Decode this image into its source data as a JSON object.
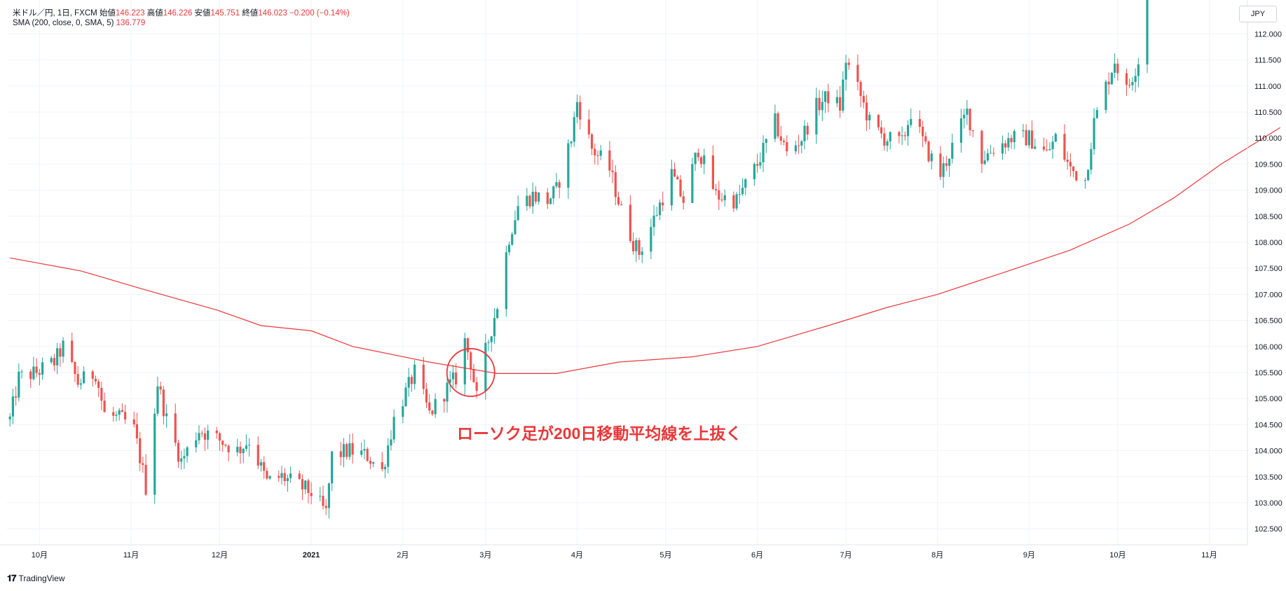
{
  "header": {
    "symbol_line": "米ドル／円, 1日, FXCM",
    "open_label": "始値",
    "open_value": "146.223",
    "high_label": "高値",
    "high_value": "146.226",
    "low_label": "安値",
    "low_value": "145.751",
    "close_label": "終値",
    "close_value": "146.023",
    "change_value": "−0.200 (−0.14%)",
    "indicator_label": "SMA (200, close, 0, SMA, 5)",
    "indicator_value": "136.779"
  },
  "currency_badge": "JPY",
  "annotation_text": "ローソク足が200日移動平均線を上抜く",
  "brand": "TradingView",
  "colors": {
    "up": "#26a69a",
    "down": "#ef5350",
    "sma": "#e8383a",
    "grid": "#f0f3fa"
  },
  "chart_data": {
    "type": "candlestick",
    "y_axis_ticks": [
      "102.500",
      "103.000",
      "103.500",
      "104.000",
      "104.500",
      "105.000",
      "105.500",
      "106.000",
      "106.500",
      "107.000",
      "107.500",
      "108.000",
      "108.500",
      "109.000",
      "109.500",
      "110.000",
      "110.500",
      "111.000",
      "111.500",
      "112.000"
    ],
    "ylim": [
      102.35,
      112.65
    ],
    "x_axis_labels": [
      "10月",
      "11月",
      "12月",
      "2021",
      "2月",
      "3月",
      "4月",
      "5月",
      "6月",
      "7月",
      "8月",
      "9月",
      "10月",
      "11月"
    ],
    "x_axis_dates": [
      "2020-10-01",
      "2020-11-01",
      "2020-12-01",
      "2021-01-01",
      "2021-02-01",
      "2021-03-01",
      "2021-04-01",
      "2021-05-01",
      "2021-06-01",
      "2021-07-01",
      "2021-08-01",
      "2021-09-01",
      "2021-10-01",
      "2021-11-01"
    ],
    "close_path": [
      [
        "2020-09-21",
        104.6
      ],
      [
        "2020-09-24",
        105.4
      ],
      [
        "2020-09-30",
        105.5
      ],
      [
        "2020-10-06",
        105.7
      ],
      [
        "2020-10-09",
        106.0
      ],
      [
        "2020-10-14",
        105.3
      ],
      [
        "2020-10-20",
        105.5
      ],
      [
        "2020-10-23",
        104.7
      ],
      [
        "2020-10-29",
        104.6
      ],
      [
        "2020-11-02",
        104.4
      ],
      [
        "2020-11-05",
        103.6
      ],
      [
        "2020-11-06",
        103.3
      ],
      [
        "2020-11-10",
        105.3
      ],
      [
        "2020-11-13",
        104.6
      ],
      [
        "2020-11-18",
        103.8
      ],
      [
        "2020-11-24",
        104.4
      ],
      [
        "2020-12-01",
        104.2
      ],
      [
        "2020-12-07",
        104.0
      ],
      [
        "2020-12-11",
        104.2
      ],
      [
        "2020-12-17",
        103.4
      ],
      [
        "2020-12-22",
        103.5
      ],
      [
        "2021-01-01",
        103.2
      ],
      [
        "2021-01-06",
        102.8
      ],
      [
        "2021-01-08",
        103.9
      ],
      [
        "2021-01-14",
        104.0
      ],
      [
        "2021-01-20",
        103.9
      ],
      [
        "2021-01-25",
        103.6
      ],
      [
        "2021-01-29",
        104.6
      ],
      [
        "2021-02-05",
        105.5
      ],
      [
        "2021-02-10",
        104.7
      ],
      [
        "2021-02-16",
        105.2
      ],
      [
        "2021-02-19",
        105.4
      ],
      [
        "2021-02-22",
        106.1
      ],
      [
        "2021-02-24",
        105.7
      ],
      [
        "2021-02-26",
        105.0
      ],
      [
        "2021-03-01",
        105.9
      ],
      [
        "2021-03-05",
        106.8
      ],
      [
        "2021-03-09",
        108.1
      ],
      [
        "2021-03-12",
        108.7
      ],
      [
        "2021-03-17",
        108.9
      ],
      [
        "2021-03-22",
        108.8
      ],
      [
        "2021-03-25",
        109.0
      ],
      [
        "2021-03-30",
        110.0
      ],
      [
        "2021-04-01",
        110.7
      ],
      [
        "2021-04-06",
        109.8
      ],
      [
        "2021-04-12",
        109.4
      ],
      [
        "2021-04-16",
        108.6
      ],
      [
        "2021-04-20",
        108.0
      ],
      [
        "2021-04-22",
        107.8
      ],
      [
        "2021-04-26",
        108.3
      ],
      [
        "2021-05-03",
        109.3
      ],
      [
        "2021-05-07",
        108.8
      ],
      [
        "2021-05-12",
        109.8
      ],
      [
        "2021-05-18",
        108.9
      ],
      [
        "2021-05-25",
        108.8
      ],
      [
        "2021-06-01",
        109.5
      ],
      [
        "2021-06-07",
        110.3
      ],
      [
        "2021-06-11",
        109.7
      ],
      [
        "2021-06-16",
        110.0
      ],
      [
        "2021-06-21",
        110.6
      ],
      [
        "2021-06-25",
        110.8
      ],
      [
        "2021-06-29",
        110.6
      ],
      [
        "2021-07-01",
        111.5
      ],
      [
        "2021-07-06",
        110.8
      ],
      [
        "2021-07-09",
        110.3
      ],
      [
        "2021-07-14",
        110.0
      ],
      [
        "2021-07-20",
        109.9
      ],
      [
        "2021-07-23",
        110.5
      ],
      [
        "2021-07-28",
        109.8
      ],
      [
        "2021-08-02",
        109.3
      ],
      [
        "2021-08-05",
        109.7
      ],
      [
        "2021-08-11",
        110.5
      ],
      [
        "2021-08-16",
        109.6
      ],
      [
        "2021-08-20",
        109.8
      ],
      [
        "2021-08-26",
        110.0
      ],
      [
        "2021-09-01",
        110.0
      ],
      [
        "2021-09-07",
        109.7
      ],
      [
        "2021-09-10",
        110.0
      ],
      [
        "2021-09-15",
        109.4
      ],
      [
        "2021-09-20",
        109.2
      ],
      [
        "2021-09-23",
        110.3
      ],
      [
        "2021-09-27",
        111.0
      ],
      [
        "2021-09-30",
        111.5
      ],
      [
        "2021-10-04",
        110.9
      ],
      [
        "2021-10-08",
        111.5
      ],
      [
        "2021-10-11",
        112.6
      ]
    ],
    "series": [
      {
        "name": "SMA (200, close, 0, SMA, 5)",
        "points": [
          [
            "2020-09-21",
            107.7
          ],
          [
            "2020-10-15",
            107.45
          ],
          [
            "2020-11-05",
            107.1
          ],
          [
            "2020-11-30",
            106.7
          ],
          [
            "2020-12-15",
            106.4
          ],
          [
            "2021-01-01",
            106.3
          ],
          [
            "2021-01-15",
            106.0
          ],
          [
            "2021-02-10",
            105.7
          ],
          [
            "2021-03-05",
            105.48
          ],
          [
            "2021-03-25",
            105.48
          ],
          [
            "2021-04-15",
            105.7
          ],
          [
            "2021-05-10",
            105.8
          ],
          [
            "2021-06-01",
            106.0
          ],
          [
            "2021-06-25",
            106.4
          ],
          [
            "2021-07-15",
            106.75
          ],
          [
            "2021-08-01",
            107.0
          ],
          [
            "2021-08-25",
            107.45
          ],
          [
            "2021-09-15",
            107.85
          ],
          [
            "2021-10-05",
            108.35
          ],
          [
            "2021-10-20",
            108.85
          ],
          [
            "2021-11-05",
            109.5
          ],
          [
            "2021-11-25",
            110.2
          ]
        ]
      }
    ],
    "highlight": {
      "date": "2021-02-24",
      "value": 105.5
    }
  }
}
